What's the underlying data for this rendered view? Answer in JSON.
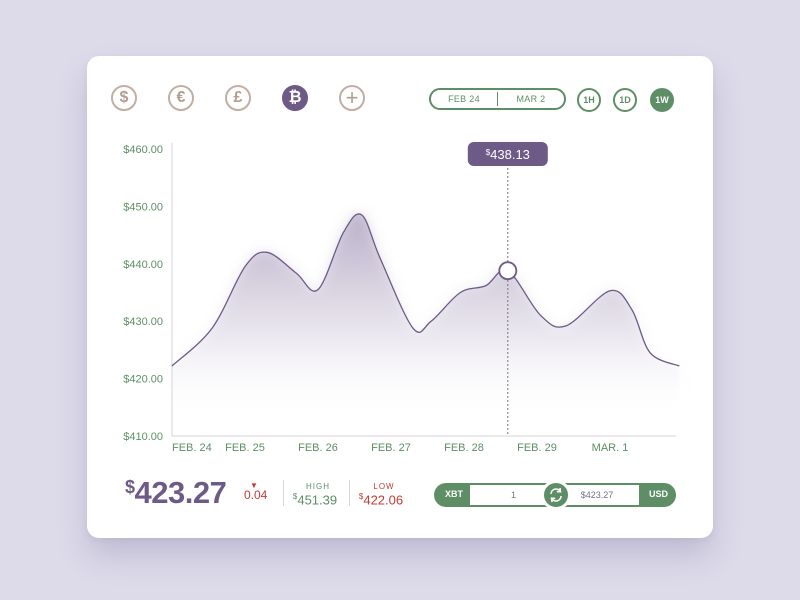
{
  "currencies": [
    {
      "symbol": "$",
      "icon": "dollar-icon",
      "active": false
    },
    {
      "symbol": "€",
      "icon": "euro-icon",
      "active": false
    },
    {
      "symbol": "£",
      "icon": "pound-icon",
      "active": false
    },
    {
      "symbol": "₿",
      "icon": "bitcoin-icon",
      "active": true
    }
  ],
  "add_icon": "plus-icon",
  "date_range": {
    "from": "FEB 24",
    "to": "MAR 2"
  },
  "timeframes": [
    {
      "label": "1H",
      "active": false
    },
    {
      "label": "1D",
      "active": false
    },
    {
      "label": "1W",
      "active": true
    }
  ],
  "tooltip": {
    "currency": "$",
    "value": "438.13"
  },
  "summary": {
    "currency": "$",
    "price": "423.27",
    "change": "0.04",
    "change_direction": "down",
    "high_label": "HIGH",
    "high_currency": "$",
    "high_value": "451.39",
    "low_label": "LOW",
    "low_currency": "$",
    "low_value": "422.06"
  },
  "converter": {
    "from_currency": "XBT",
    "from_amount": "1",
    "to_amount": "$423.27",
    "to_currency": "USD",
    "swap_icon": "swap-icon"
  },
  "colors": {
    "purple": "#6e5a87",
    "green": "#5e8e65",
    "red": "#c23b34",
    "inactive_icon": "#c2aea2"
  },
  "chart_data": {
    "type": "area",
    "x": [
      "FEB. 24",
      "FEB. 25",
      "FEB. 26",
      "FEB. 27",
      "FEB. 28",
      "FEB. 29",
      "MAR. 1"
    ],
    "ytick_labels": [
      "$410.00",
      "$420.00",
      "$430.00",
      "$440.00",
      "$450.00",
      "$460.00"
    ],
    "ylim": [
      410,
      460
    ],
    "xlim": [
      0,
      6.95
    ],
    "grid": false,
    "series": [
      {
        "points": [
          [
            0.0,
            422.2
          ],
          [
            0.55,
            428.8
          ],
          [
            1.0,
            439.5
          ],
          [
            1.3,
            442.0
          ],
          [
            1.7,
            438.4
          ],
          [
            2.0,
            435.5
          ],
          [
            2.35,
            445.5
          ],
          [
            2.6,
            448.5
          ],
          [
            2.85,
            441.0
          ],
          [
            3.3,
            428.8
          ],
          [
            3.55,
            430.0
          ],
          [
            3.95,
            435.0
          ],
          [
            4.3,
            436.2
          ],
          [
            4.6,
            438.8
          ],
          [
            5.05,
            431.0
          ],
          [
            5.4,
            429.2
          ],
          [
            6.0,
            435.3
          ],
          [
            6.3,
            432.0
          ],
          [
            6.55,
            424.5
          ],
          [
            6.95,
            422.2
          ]
        ]
      }
    ],
    "marker": {
      "x": 4.6,
      "y": 438.8
    }
  }
}
